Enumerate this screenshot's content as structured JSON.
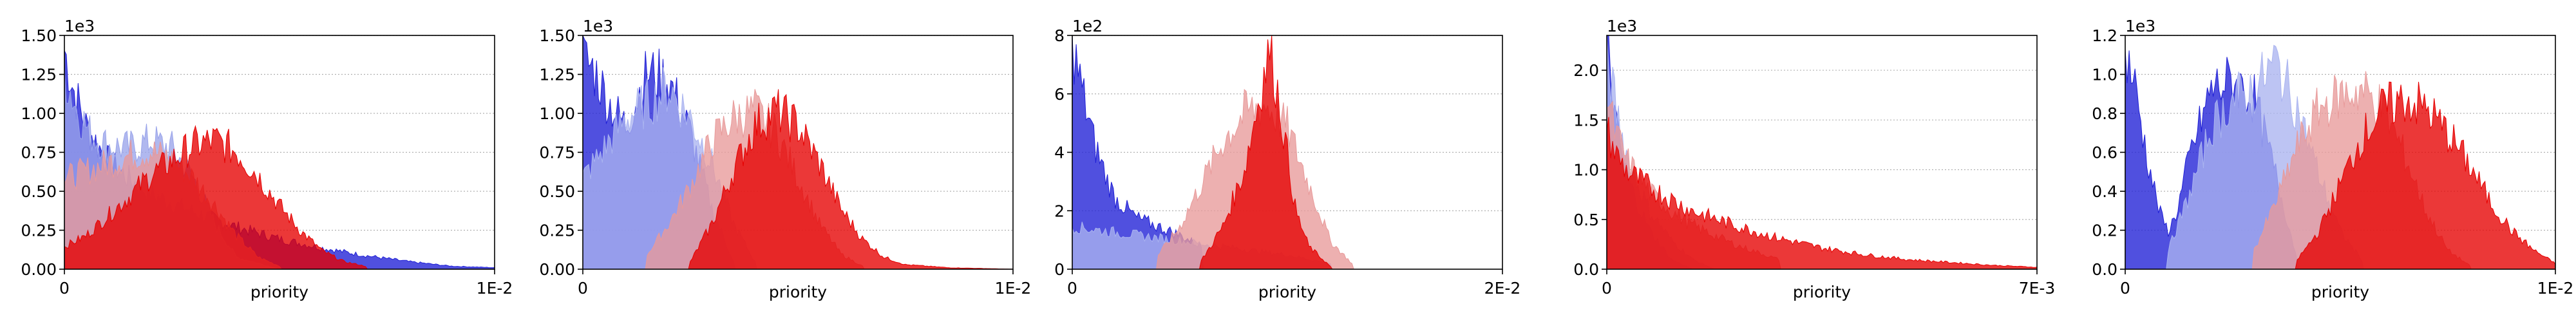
{
  "chart_data": [
    {
      "type": "area",
      "xlabel": "priority",
      "x_tick_labels": [
        "0",
        "1E-2"
      ],
      "y_tick_labels": [
        "0.00",
        "0.25",
        "0.50",
        "0.75",
        "1.00",
        "1.25",
        "1.50"
      ],
      "y_ticks": [
        0,
        0.25,
        0.5,
        0.75,
        1.0,
        1.25,
        1.5
      ],
      "y_multiplier": "1e3",
      "ylim": [
        0,
        1.5
      ],
      "xlim": [
        0,
        1
      ],
      "grid": "y-dotted",
      "series": [
        {
          "color": "#1f1fd6",
          "x": [
            0,
            0.02,
            0.05,
            0.1,
            0.15,
            0.2,
            0.3,
            0.4,
            0.5,
            0.6,
            0.7,
            0.8,
            0.9,
            1.0
          ],
          "values": [
            1.45,
            1.2,
            0.95,
            0.72,
            0.6,
            0.5,
            0.38,
            0.28,
            0.2,
            0.14,
            0.09,
            0.05,
            0.02,
            0.01
          ]
        },
        {
          "color": "#9aa4ea",
          "x": [
            0,
            0.03,
            0.06,
            0.1,
            0.15,
            0.2,
            0.25,
            0.3,
            0.35,
            0.4,
            0.5
          ],
          "values": [
            1.3,
            1.05,
            0.9,
            0.82,
            0.8,
            0.85,
            0.8,
            0.6,
            0.3,
            0.08,
            0.0
          ]
        },
        {
          "color": "#e89a9a",
          "x": [
            0,
            0.05,
            0.1,
            0.15,
            0.2,
            0.25,
            0.3,
            0.35,
            0.4,
            0.45,
            0.5
          ],
          "values": [
            0.6,
            0.65,
            0.7,
            0.75,
            0.78,
            0.72,
            0.6,
            0.42,
            0.22,
            0.08,
            0.02
          ]
        },
        {
          "color": "#e60000",
          "x": [
            0,
            0.05,
            0.1,
            0.15,
            0.2,
            0.25,
            0.3,
            0.35,
            0.4,
            0.45,
            0.5,
            0.55,
            0.6,
            0.65,
            0.7
          ],
          "values": [
            0.15,
            0.22,
            0.35,
            0.48,
            0.62,
            0.72,
            0.82,
            0.85,
            0.78,
            0.62,
            0.42,
            0.25,
            0.12,
            0.05,
            0.02
          ]
        }
      ]
    },
    {
      "type": "area",
      "xlabel": "priority",
      "x_tick_labels": [
        "0",
        "1E-2"
      ],
      "y_tick_labels": [
        "0.00",
        "0.25",
        "0.50",
        "0.75",
        "1.00",
        "1.25",
        "1.50"
      ],
      "y_ticks": [
        0,
        0.25,
        0.5,
        0.75,
        1.0,
        1.25,
        1.5
      ],
      "y_multiplier": "1e3",
      "ylim": [
        0,
        1.5
      ],
      "xlim": [
        0,
        1
      ],
      "grid": "y-dotted",
      "series": [
        {
          "color": "#1f1fd6",
          "x": [
            0,
            0.03,
            0.06,
            0.1,
            0.15,
            0.2,
            0.25,
            0.3,
            0.35
          ],
          "values": [
            1.4,
            1.3,
            1.1,
            0.95,
            1.3,
            1.25,
            0.9,
            0.4,
            0.05
          ]
        },
        {
          "color": "#aab4f0",
          "x": [
            0,
            0.05,
            0.1,
            0.15,
            0.2,
            0.25,
            0.3,
            0.35,
            0.4
          ],
          "values": [
            0.6,
            0.8,
            1.0,
            1.1,
            1.2,
            1.0,
            0.7,
            0.3,
            0.05
          ]
        },
        {
          "color": "#e89a9a",
          "x": [
            0.15,
            0.2,
            0.25,
            0.3,
            0.35,
            0.4,
            0.45,
            0.5,
            0.55,
            0.6,
            0.65
          ],
          "values": [
            0.1,
            0.3,
            0.55,
            0.85,
            1.0,
            1.05,
            0.9,
            0.6,
            0.3,
            0.1,
            0.02
          ]
        },
        {
          "color": "#e60000",
          "x": [
            0.25,
            0.3,
            0.35,
            0.4,
            0.45,
            0.5,
            0.55,
            0.6,
            0.65,
            0.7,
            0.75,
            0.85,
            1.0
          ],
          "values": [
            0.05,
            0.3,
            0.65,
            0.95,
            1.05,
            0.95,
            0.7,
            0.4,
            0.2,
            0.08,
            0.03,
            0.01,
            0.0
          ]
        }
      ]
    },
    {
      "type": "area",
      "xlabel": "priority",
      "x_tick_labels": [
        "0",
        "2E-2"
      ],
      "y_tick_labels": [
        "0",
        "2",
        "4",
        "6",
        "8"
      ],
      "y_ticks": [
        0,
        2,
        4,
        6,
        8
      ],
      "y_multiplier": "1e2",
      "ylim": [
        0,
        8
      ],
      "xlim": [
        0,
        1
      ],
      "grid": "y-dotted",
      "series": [
        {
          "color": "#1f1fd6",
          "x": [
            0,
            0.02,
            0.05,
            0.08,
            0.1,
            0.15,
            0.2,
            0.25,
            0.3
          ],
          "values": [
            8,
            6.5,
            4.5,
            3.2,
            2.5,
            1.8,
            1.5,
            1.2,
            0.8
          ]
        },
        {
          "color": "#aab4f0",
          "x": [
            0,
            0.05,
            0.1,
            0.15,
            0.2,
            0.25,
            0.3,
            0.35,
            0.4,
            0.5,
            0.6
          ],
          "values": [
            1.5,
            1.4,
            1.3,
            1.2,
            1.1,
            1.0,
            0.9,
            0.8,
            0.7,
            0.5,
            0.2
          ]
        },
        {
          "color": "#e89a9a",
          "x": [
            0.2,
            0.25,
            0.3,
            0.35,
            0.4,
            0.45,
            0.5,
            0.55,
            0.6,
            0.65
          ],
          "values": [
            0.5,
            1.5,
            3.0,
            4.5,
            5.5,
            5.8,
            5.0,
            3.0,
            1.0,
            0.2
          ]
        },
        {
          "color": "#e60000",
          "x": [
            0.3,
            0.35,
            0.4,
            0.42,
            0.44,
            0.46,
            0.48,
            0.5,
            0.52,
            0.55,
            0.6
          ],
          "values": [
            0.3,
            1.5,
            3.5,
            5.0,
            6.5,
            7.8,
            6.0,
            4.0,
            2.0,
            0.8,
            0.1
          ]
        }
      ]
    },
    {
      "type": "area",
      "xlabel": "priority",
      "x_tick_labels": [
        "0",
        "7E-3"
      ],
      "y_tick_labels": [
        "0.0",
        "0.5",
        "1.0",
        "1.5",
        "2.0"
      ],
      "y_ticks": [
        0,
        0.5,
        1.0,
        1.5,
        2.0
      ],
      "y_multiplier": "1e3",
      "ylim": [
        0,
        2.35
      ],
      "xlim": [
        0,
        1
      ],
      "grid": "y-dotted",
      "series": [
        {
          "color": "#1f1fd6",
          "x": [
            0,
            0.01,
            0.02,
            0.04,
            0.06,
            0.1,
            0.15,
            0.2
          ],
          "values": [
            2.35,
            2.0,
            1.5,
            1.1,
            0.8,
            0.4,
            0.1,
            0.0
          ]
        },
        {
          "color": "#aab4f0",
          "x": [
            0,
            0.02,
            0.04,
            0.06,
            0.1,
            0.15,
            0.2,
            0.25
          ],
          "values": [
            2.2,
            1.7,
            1.3,
            1.0,
            0.6,
            0.3,
            0.1,
            0.0
          ]
        },
        {
          "color": "#e89a9a",
          "x": [
            0,
            0.02,
            0.05,
            0.1,
            0.15,
            0.2,
            0.3,
            0.4
          ],
          "values": [
            1.8,
            1.4,
            1.1,
            0.8,
            0.6,
            0.45,
            0.25,
            0.1
          ]
        },
        {
          "color": "#e60000",
          "x": [
            0,
            0.02,
            0.05,
            0.1,
            0.15,
            0.2,
            0.3,
            0.4,
            0.5,
            0.6,
            0.7,
            0.8,
            0.9,
            1.0
          ],
          "values": [
            1.45,
            1.2,
            1.0,
            0.85,
            0.72,
            0.6,
            0.45,
            0.32,
            0.22,
            0.15,
            0.1,
            0.07,
            0.04,
            0.02
          ]
        }
      ]
    },
    {
      "type": "area",
      "xlabel": "priority",
      "x_tick_labels": [
        "0",
        "1E-2"
      ],
      "y_tick_labels": [
        "0.0",
        "0.2",
        "0.4",
        "0.6",
        "0.8",
        "1.0",
        "1.2"
      ],
      "y_ticks": [
        0,
        0.2,
        0.4,
        0.6,
        0.8,
        1.0,
        1.2
      ],
      "y_multiplier": "1e3",
      "ylim": [
        0,
        1.2
      ],
      "xlim": [
        0,
        1
      ],
      "grid": "y-dotted",
      "series": [
        {
          "color": "#1f1fd6",
          "x": [
            0,
            0.02,
            0.05,
            0.08,
            0.1,
            0.12,
            0.15,
            0.2,
            0.25,
            0.3,
            0.35,
            0.4
          ],
          "values": [
            1.15,
            1.0,
            0.6,
            0.3,
            0.2,
            0.3,
            0.6,
            0.95,
            1.0,
            0.9,
            0.5,
            0.05
          ]
        },
        {
          "color": "#aab4f0",
          "x": [
            0.1,
            0.15,
            0.2,
            0.25,
            0.3,
            0.35,
            0.4,
            0.45,
            0.5,
            0.55
          ],
          "values": [
            0.1,
            0.4,
            0.75,
            0.9,
            0.95,
            1.1,
            0.85,
            0.5,
            0.2,
            0.05
          ]
        },
        {
          "color": "#e89a9a",
          "x": [
            0.3,
            0.35,
            0.4,
            0.45,
            0.5,
            0.55,
            0.6,
            0.65,
            0.7,
            0.75,
            0.8
          ],
          "values": [
            0.1,
            0.35,
            0.65,
            0.85,
            0.92,
            0.95,
            0.85,
            0.6,
            0.3,
            0.1,
            0.02
          ]
        },
        {
          "color": "#e60000",
          "x": [
            0.4,
            0.45,
            0.5,
            0.55,
            0.6,
            0.65,
            0.7,
            0.75,
            0.8,
            0.85,
            0.9,
            0.95,
            1.0
          ],
          "values": [
            0.05,
            0.2,
            0.45,
            0.7,
            0.85,
            0.9,
            0.85,
            0.72,
            0.55,
            0.35,
            0.2,
            0.1,
            0.03
          ]
        }
      ]
    }
  ]
}
